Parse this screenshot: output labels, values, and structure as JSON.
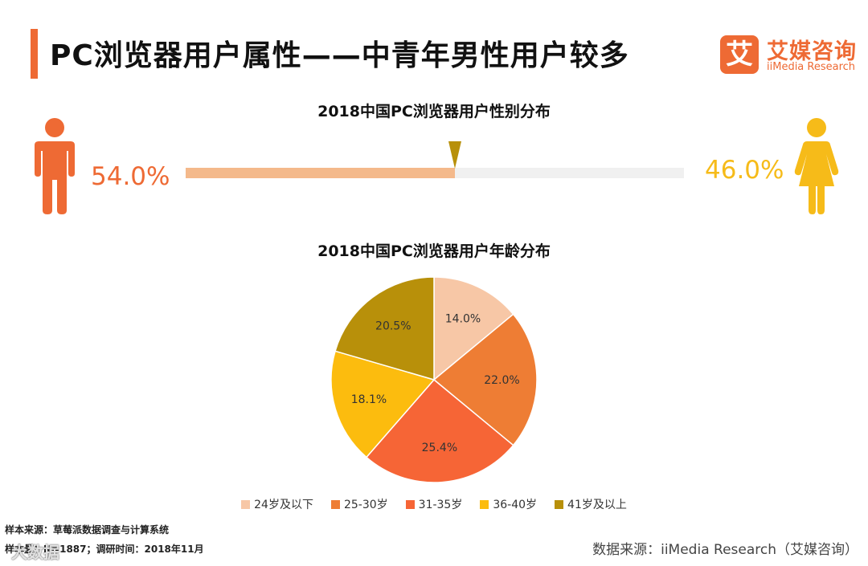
{
  "header": {
    "title": "PC浏览器用户属性——中青年男性用户较多"
  },
  "logo": {
    "badge": "艾",
    "name_cn": "艾媒咨询",
    "name_en": "iiMedia Research",
    "color": "#ee6a34"
  },
  "gender_chart": {
    "title": "2018中国PC浏览器用户性别分布",
    "male_label": "54.0%",
    "female_label": "46.0%",
    "male_value": 54.0,
    "female_value": 46.0,
    "male_color": "#ee6a34",
    "female_color": "#f6bb19",
    "bar_fill_color": "#f4b98b",
    "marker_color": "#b8900a",
    "male_icon": "male-person-icon",
    "female_icon": "female-person-icon"
  },
  "chart_data": {
    "type": "pie",
    "title": "2018中国PC浏览器用户年龄分布",
    "categories": [
      "24岁及以下",
      "25-30岁",
      "31-35岁",
      "36-40岁",
      "41岁及以上"
    ],
    "values": [
      14.0,
      22.0,
      25.4,
      18.1,
      20.5
    ],
    "labels": [
      "14.0%",
      "22.0%",
      "25.4%",
      "18.1%",
      "20.5%"
    ],
    "colors": [
      "#f7c7a6",
      "#ee7d34",
      "#f66536",
      "#fcbc0e",
      "#b8900a"
    ],
    "legend_position": "bottom"
  },
  "footer": {
    "note1": "样本来源：草莓派数据调查与计算系统",
    "note2": "样本量：N=1887；调研时间：2018年11月",
    "source": "数据来源：iiMedia Research（艾媒咨询）",
    "watermark": "大数据"
  }
}
